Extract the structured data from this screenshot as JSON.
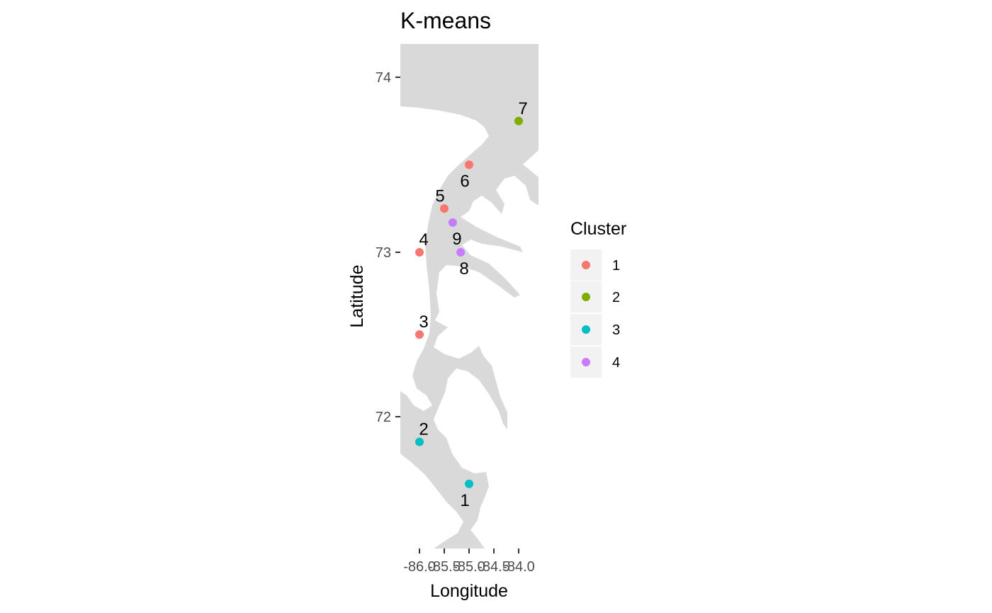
{
  "chart_data": {
    "type": "scatter",
    "title": "K-means",
    "xlabel": "Longitude",
    "ylabel": "Latitude",
    "xlim": [
      -86.4,
      -83.58
    ],
    "ylim": [
      71.22,
      74.2
    ],
    "x_ticks": [
      -86.0,
      -85.5,
      -85.0,
      -84.5,
      -84.0
    ],
    "x_tick_labels": [
      "-86.0",
      "-85.5",
      "-85.0",
      "-84.5",
      "-84.0"
    ],
    "y_ticks": [
      72,
      73,
      74
    ],
    "y_tick_labels": [
      "72",
      "73",
      "74"
    ],
    "grid": false,
    "background": "coastline map (land shaded grey)",
    "legend": {
      "title": "Cluster",
      "position": "right",
      "entries": [
        {
          "label": "1",
          "color": "#F8766D"
        },
        {
          "label": "2",
          "color": "#7CAE00"
        },
        {
          "label": "3",
          "color": "#00BFC4"
        },
        {
          "label": "4",
          "color": "#C77CFF"
        }
      ]
    },
    "points": [
      {
        "id": "1",
        "lon": -85.0,
        "lat": 71.6,
        "cluster": "3",
        "label_pos": "below"
      },
      {
        "id": "2",
        "lon": -86.0,
        "lat": 71.85,
        "cluster": "3",
        "label_pos": "above"
      },
      {
        "id": "3",
        "lon": -86.0,
        "lat": 72.5,
        "cluster": "1",
        "label_pos": "above"
      },
      {
        "id": "4",
        "lon": -86.0,
        "lat": 73.0,
        "cluster": "1",
        "label_pos": "above"
      },
      {
        "id": "5",
        "lon": -85.5,
        "lat": 73.25,
        "cluster": "1",
        "label_pos": "above"
      },
      {
        "id": "6",
        "lon": -85.0,
        "lat": 73.5,
        "cluster": "1",
        "label_pos": "below"
      },
      {
        "id": "7",
        "lon": -84.0,
        "lat": 73.75,
        "cluster": "2",
        "label_pos": "above"
      },
      {
        "id": "8",
        "lon": -85.17,
        "lat": 73.0,
        "cluster": "4",
        "label_pos": "below"
      },
      {
        "id": "9",
        "lon": -85.33,
        "lat": 73.17,
        "cluster": "4",
        "label_pos": "below"
      }
    ]
  },
  "colors": {
    "land": "#D9D9D9",
    "tick": "#333333",
    "legend_key_bg": "#F2F2F2"
  }
}
